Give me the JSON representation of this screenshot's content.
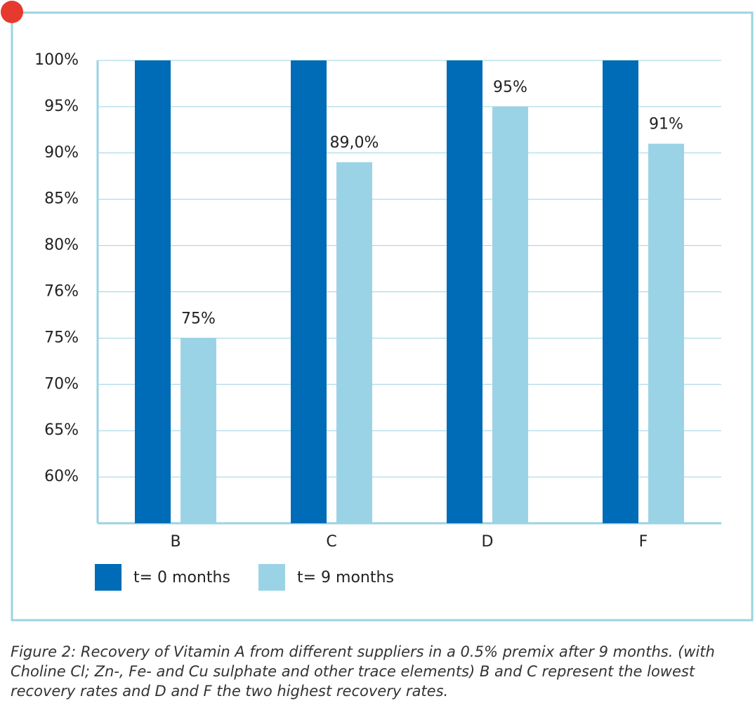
{
  "chart_data": {
    "type": "bar",
    "categories": [
      "B",
      "C",
      "D",
      "F"
    ],
    "series": [
      {
        "name": "t= 0 months",
        "color": "#006bb6",
        "values": [
          100,
          100,
          100,
          100
        ]
      },
      {
        "name": "t= 9 months",
        "color": "#9bd3e6",
        "values": [
          75,
          89,
          95,
          91
        ],
        "value_labels": [
          "75%",
          "89,0%",
          "95%",
          "91%"
        ]
      }
    ],
    "ylim": [
      55,
      100
    ],
    "yticks": [
      {
        "value": 100,
        "label": "100%"
      },
      {
        "value": 95,
        "label": "95%"
      },
      {
        "value": 90,
        "label": "90%"
      },
      {
        "value": 85,
        "label": "85%"
      },
      {
        "value": 80,
        "label": "80%"
      },
      {
        "value": 76,
        "label": "76%"
      },
      {
        "value": 75,
        "label": "75%"
      },
      {
        "value": 70,
        "label": "70%"
      },
      {
        "value": 65,
        "label": "65%"
      },
      {
        "value": 60,
        "label": "60%"
      }
    ],
    "grid": true,
    "caption": "Figure 2: Recovery of Vitamin A from different suppliers in a 0.5% premix after 9 months. (with Choline Cl; Zn-, Fe- and Cu sulphate and other trace elements) B and C represent the lowest recovery rates and D and F the two highest recovery rates."
  }
}
